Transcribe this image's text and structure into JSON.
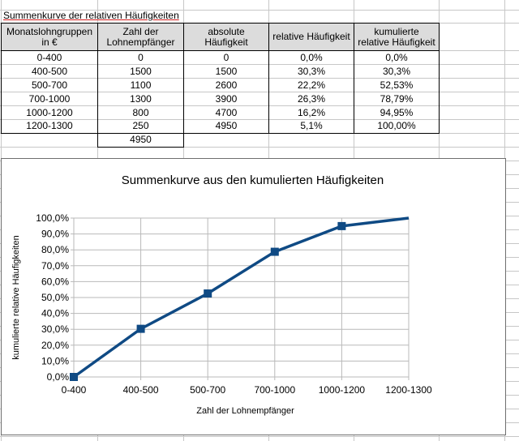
{
  "sheet": {
    "title": "Summenkurve der relativen Häufigkeiten"
  },
  "table": {
    "headers": [
      "Monatslohngruppen\nin €",
      "Zahl der\nLohnempfänger",
      "absolute\nHäufigkeit",
      "relative Häufigkeit",
      "kumulierte\nrelative Häufigkeit"
    ],
    "rows": [
      [
        "0-400",
        "0",
        "0",
        "0,0%",
        "0,0%"
      ],
      [
        "400-500",
        "1500",
        "1500",
        "30,3%",
        "30,3%"
      ],
      [
        "500-700",
        "1100",
        "2600",
        "22,2%",
        "52,53%"
      ],
      [
        "700-1000",
        "1300",
        "3900",
        "26,3%",
        "78,79%"
      ],
      [
        "1000-1200",
        "800",
        "4700",
        "16,2%",
        "94,95%"
      ],
      [
        "1200-1300",
        "250",
        "4950",
        "5,1%",
        "100,00%"
      ]
    ],
    "total": "4950"
  },
  "chart_data": {
    "type": "line",
    "title": "Summenkurve aus den kumulierten Häufigkeiten",
    "xlabel": "Zahl der Lohnempfänger",
    "ylabel": "kumulierte relative Häufigkeiten",
    "categories": [
      "0-400",
      "400-500",
      "500-700",
      "700-1000",
      "1000-1200",
      "1200-1300"
    ],
    "values": [
      0.0,
      30.3,
      52.53,
      78.79,
      94.95,
      100.0
    ],
    "markers": [
      true,
      true,
      true,
      true,
      true,
      false
    ],
    "y_tick_labels": [
      "0,0%",
      "10,0%",
      "20,0%",
      "30,0%",
      "40,0%",
      "50,0%",
      "60,0%",
      "70,0%",
      "80,0%",
      "90,0%",
      "100,0%"
    ],
    "ylim": [
      0,
      100
    ],
    "grid": true,
    "legend": "none",
    "color": "#0f4a84"
  }
}
